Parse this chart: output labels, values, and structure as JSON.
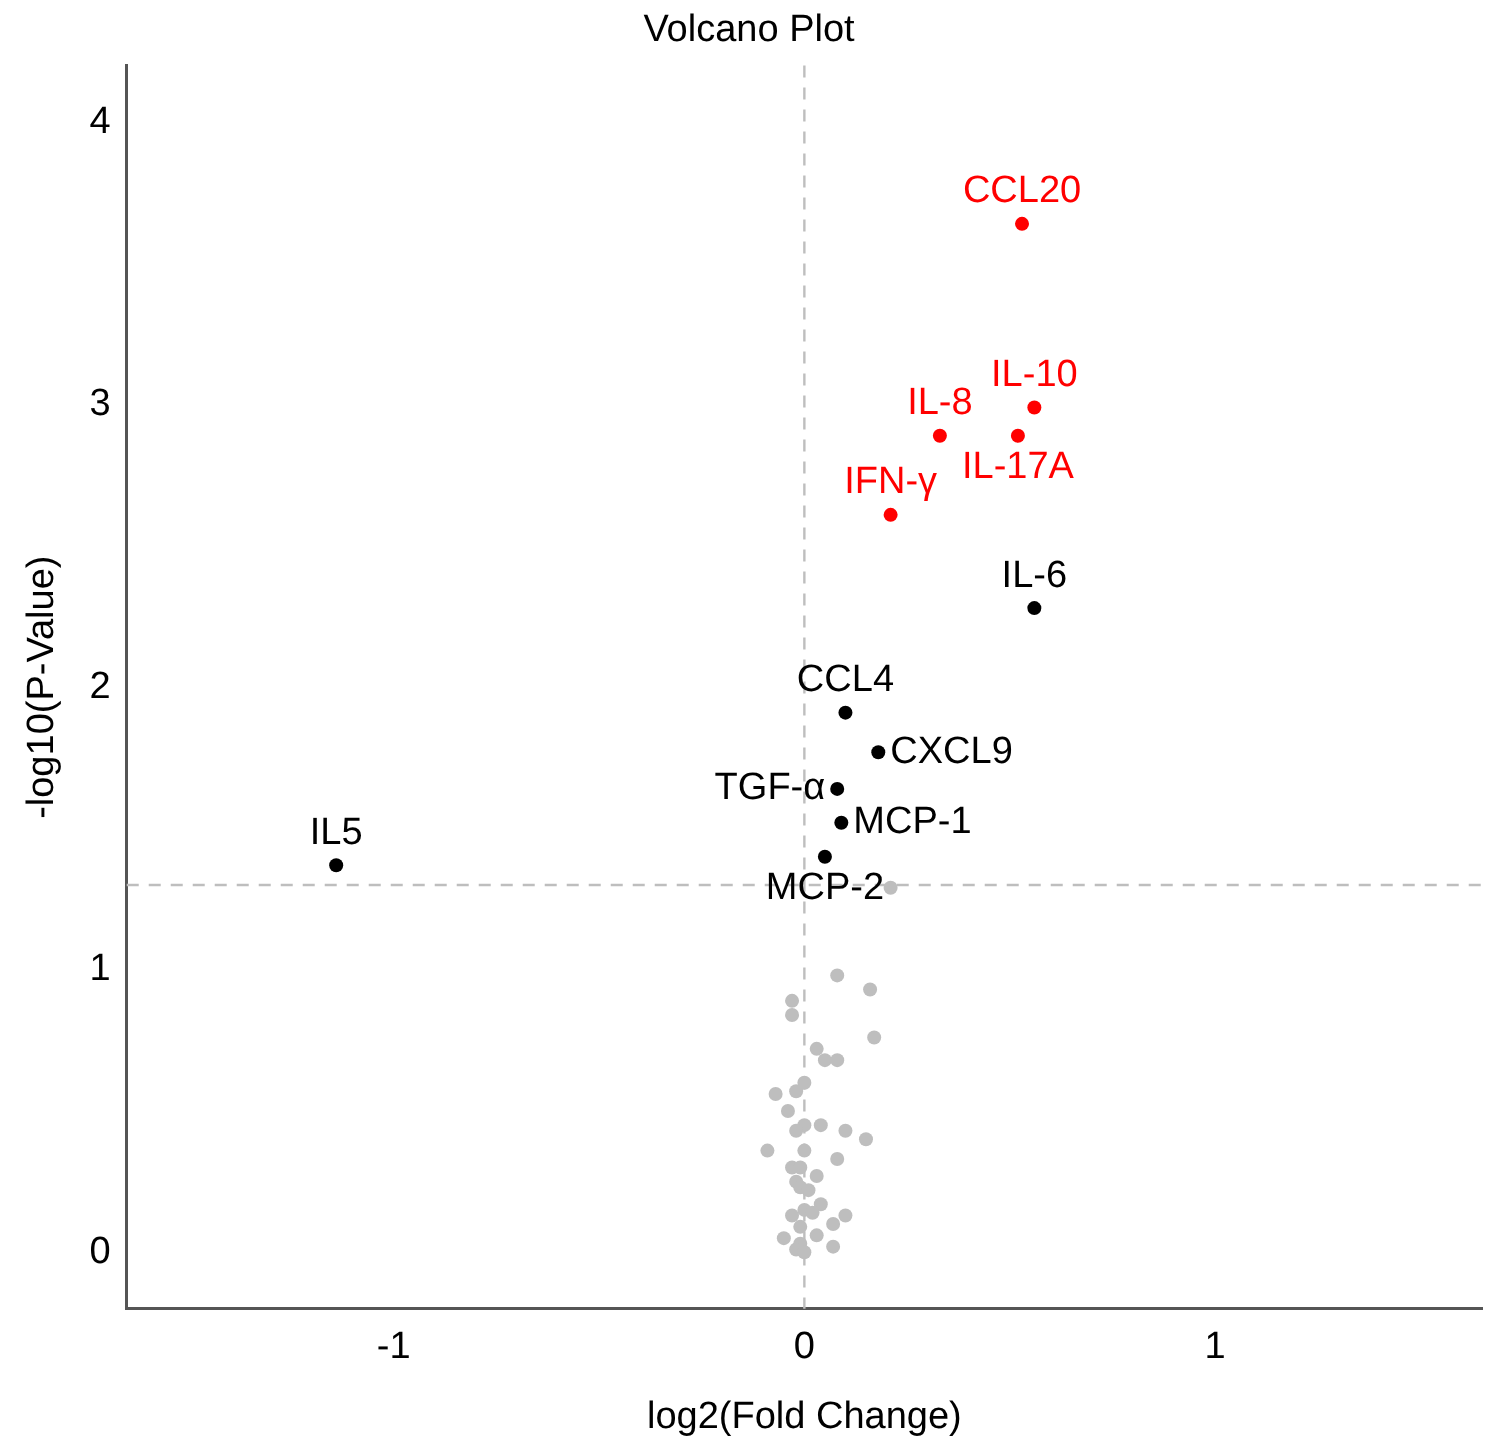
{
  "chart_data": {
    "type": "scatter",
    "title": "Volcano Plot",
    "xlabel": "log2(Fold Change)",
    "ylabel": "-log10(P-Value)",
    "xlim": [
      -1.65,
      1.65
    ],
    "xticks": [
      -1,
      0,
      1
    ],
    "ylim": [
      -0.2,
      4.2
    ],
    "yticks": [
      0,
      1,
      2,
      3,
      4
    ],
    "grid": false,
    "legend": false,
    "marker": "circle",
    "ref_lines": [
      {
        "axis": "x",
        "value": 0,
        "color": "#bebebe",
        "line_style": "dashed"
      },
      {
        "axis": "y",
        "value": 1.3,
        "color": "#bebebe",
        "line_style": "dashed"
      }
    ],
    "series": [
      {
        "color": "#bebebe",
        "x": [
          0.21,
          0.08,
          0.16,
          -0.03,
          -0.03,
          0.17,
          0.03,
          0.05,
          0.08,
          0.0,
          -0.07,
          -0.02,
          -0.04,
          0.0,
          0.04,
          -0.02,
          0.1,
          0.15,
          -0.09,
          0.0,
          0.08,
          -0.03,
          -0.01,
          0.03,
          -0.02,
          -0.01,
          0.01,
          0.04,
          0.0,
          -0.03,
          0.02,
          0.1,
          0.07,
          -0.01,
          0.03,
          -0.05,
          -0.01,
          0.07,
          -0.02,
          0.0
        ],
        "values": [
          1.29,
          0.98,
          0.93,
          0.89,
          0.84,
          0.76,
          0.72,
          0.68,
          0.68,
          0.6,
          0.56,
          0.57,
          0.5,
          0.45,
          0.45,
          0.43,
          0.43,
          0.4,
          0.36,
          0.36,
          0.33,
          0.3,
          0.3,
          0.27,
          0.25,
          0.23,
          0.22,
          0.17,
          0.15,
          0.13,
          0.14,
          0.13,
          0.1,
          0.09,
          0.06,
          0.05,
          0.03,
          0.02,
          0.01,
          0.0
        ]
      },
      {
        "color": "#000000",
        "x": [
          0.56,
          0.1,
          0.18,
          0.08,
          0.09,
          0.05,
          -1.14
        ],
        "values": [
          2.28,
          1.91,
          1.77,
          1.64,
          1.52,
          1.4,
          1.37
        ],
        "value_labels": [
          "IL-6",
          "CCL4",
          "CXCL9",
          "TGF-α",
          "MCP-1",
          "MCP-2",
          "IL5"
        ]
      },
      {
        "color": "#ff0000",
        "x": [
          0.53,
          0.56,
          0.33,
          0.52,
          0.21
        ],
        "values": [
          3.64,
          2.99,
          2.89,
          2.89,
          2.61
        ],
        "value_labels": [
          "CCL20",
          "IL-10",
          "IL-8",
          "IL-17A",
          "IFN-γ"
        ]
      }
    ]
  }
}
